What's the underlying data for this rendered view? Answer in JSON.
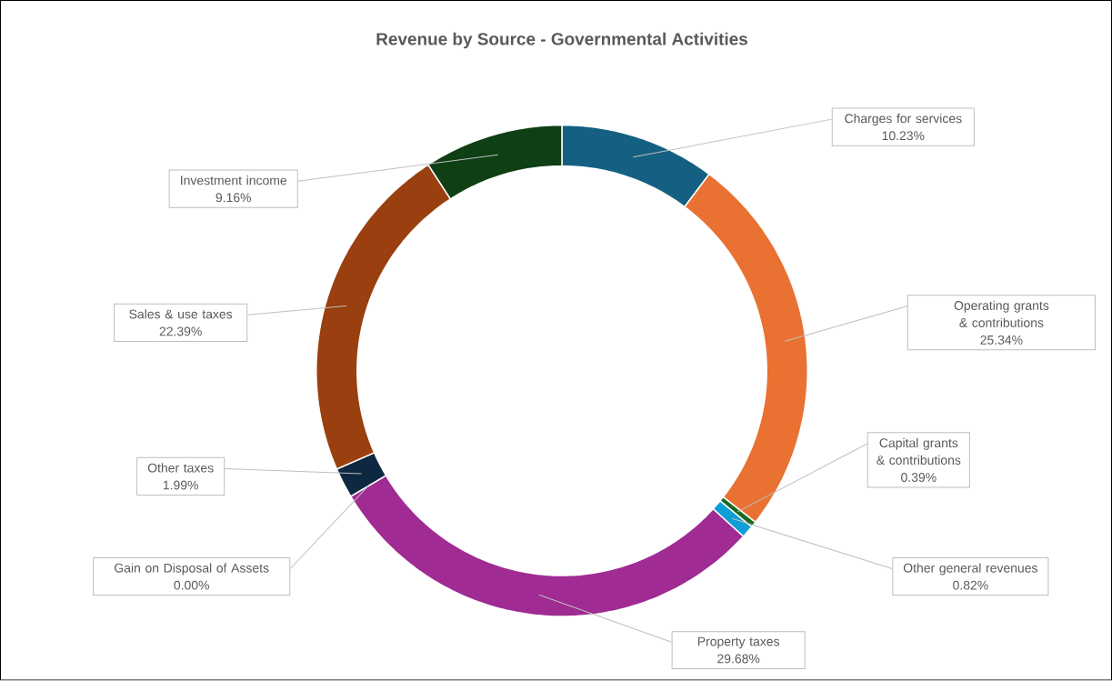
{
  "chart_data": {
    "type": "donut",
    "title": "Revenue by Source - Governmental Activities",
    "categories": [
      "Charges for services",
      "Operating grants & contributions",
      "Capital grants & contributions",
      "Other general revenues",
      "Property taxes",
      "Gain on Disposal of Assets",
      "Other taxes",
      "Sales & use taxes",
      "Investment income"
    ],
    "values": [
      10.23,
      25.34,
      0.39,
      0.82,
      29.68,
      0.0,
      1.99,
      22.39,
      9.16
    ],
    "value_labels": [
      "10.23%",
      "25.34%",
      "0.39%",
      "0.82%",
      "29.68%",
      "0.00%",
      "1.99%",
      "22.39%",
      "9.16%"
    ],
    "colors": [
      "#156082",
      "#e97132",
      "#196b24",
      "#0f9ed5",
      "#a02b93",
      "#4ea72e",
      "#0e2841",
      "#9a3f0f",
      "#0f3f14"
    ]
  }
}
